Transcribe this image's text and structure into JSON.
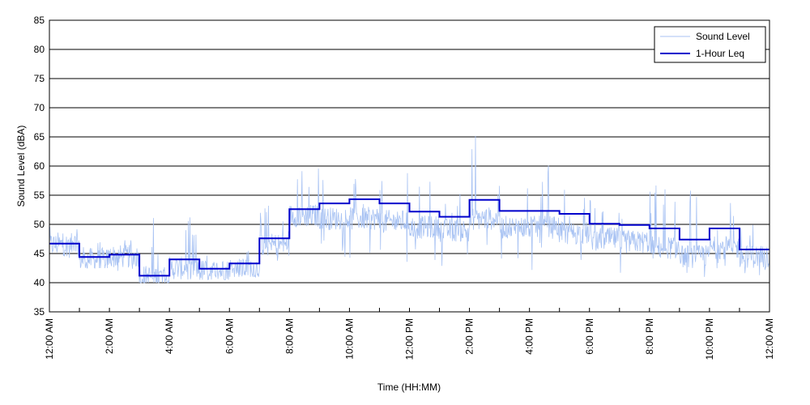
{
  "chart_data": {
    "type": "line",
    "xlabel": "Time (HH:MM)",
    "ylabel": "Sound Level (dBA)",
    "xlim": [
      0,
      24
    ],
    "ylim": [
      35,
      85
    ],
    "grid": "horizontal",
    "legend_position": "top-right",
    "x_tick_labels": [
      "12:00 AM",
      "2:00 AM",
      "4:00 AM",
      "6:00 AM",
      "8:00 AM",
      "10:00 AM",
      "12:00 PM",
      "2:00 PM",
      "4:00 PM",
      "6:00 PM",
      "8:00 PM",
      "10:00 PM",
      "12:00 AM"
    ],
    "y_ticks": [
      35,
      40,
      45,
      50,
      55,
      60,
      65,
      70,
      75,
      80,
      85
    ],
    "series": [
      {
        "name": "Sound Level",
        "color": "#a9c3f3",
        "style": "thin-line",
        "hourly_profile": [
          {
            "hour": 0,
            "mean": 46.5,
            "low": 43,
            "high": 51
          },
          {
            "hour": 1,
            "mean": 44.0,
            "low": 42.5,
            "high": 47
          },
          {
            "hour": 2,
            "mean": 44.5,
            "low": 42,
            "high": 48
          },
          {
            "hour": 3,
            "mean": 41.0,
            "low": 40,
            "high": 51.5
          },
          {
            "hour": 4,
            "mean": 42.5,
            "low": 40.5,
            "high": 51.5
          },
          {
            "hour": 5,
            "mean": 42.0,
            "low": 40.5,
            "high": 45
          },
          {
            "hour": 6,
            "mean": 42.5,
            "low": 41,
            "high": 46
          },
          {
            "hour": 7,
            "mean": 46.5,
            "low": 42,
            "high": 53.5
          },
          {
            "hour": 8,
            "mean": 51.5,
            "low": 45,
            "high": 60
          },
          {
            "hour": 9,
            "mean": 51.0,
            "low": 44,
            "high": 60.5
          },
          {
            "hour": 10,
            "mean": 51.0,
            "low": 43,
            "high": 58
          },
          {
            "hour": 11,
            "mean": 50.5,
            "low": 43,
            "high": 60
          },
          {
            "hour": 12,
            "mean": 49.5,
            "low": 43,
            "high": 59.5
          },
          {
            "hour": 13,
            "mean": 49.0,
            "low": 42,
            "high": 57.5
          },
          {
            "hour": 14,
            "mean": 51.0,
            "low": 42,
            "high": 66.5
          },
          {
            "hour": 15,
            "mean": 49.5,
            "low": 41,
            "high": 57.5
          },
          {
            "hour": 16,
            "mean": 49.5,
            "low": 42,
            "high": 63
          },
          {
            "hour": 17,
            "mean": 48.5,
            "low": 42,
            "high": 57.5
          },
          {
            "hour": 18,
            "mean": 47.5,
            "low": 41,
            "high": 56.5
          },
          {
            "hour": 19,
            "mean": 47.0,
            "low": 41,
            "high": 58.5
          },
          {
            "hour": 20,
            "mean": 46.0,
            "low": 40.5,
            "high": 57
          },
          {
            "hour": 21,
            "mean": 44.5,
            "low": 40,
            "high": 56.5
          },
          {
            "hour": 22,
            "mean": 46.0,
            "low": 40,
            "high": 56.5
          },
          {
            "hour": 23,
            "mean": 44.5,
            "low": 41,
            "high": 55
          }
        ]
      },
      {
        "name": "1-Hour Leq",
        "color": "#0000cc",
        "style": "step",
        "hours": [
          0,
          1,
          2,
          3,
          4,
          5,
          6,
          7,
          8,
          9,
          10,
          11,
          12,
          13,
          14,
          15,
          16,
          17,
          18,
          19,
          20,
          21,
          22,
          23
        ],
        "values": [
          46.7,
          44.4,
          44.8,
          41.2,
          44.0,
          42.4,
          43.3,
          47.6,
          52.6,
          53.6,
          54.3,
          53.6,
          52.2,
          51.3,
          54.2,
          52.3,
          52.3,
          51.8,
          50.1,
          49.9,
          49.3,
          47.4,
          49.3,
          45.7
        ]
      }
    ]
  }
}
